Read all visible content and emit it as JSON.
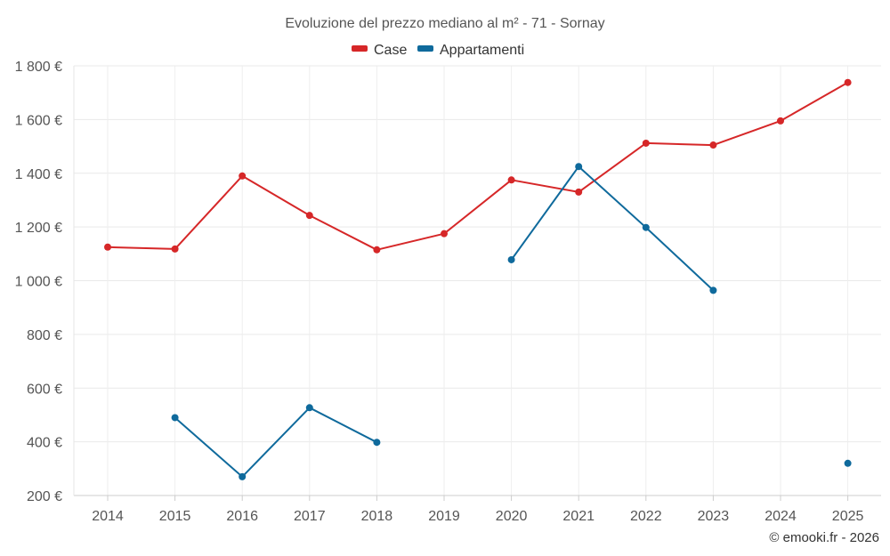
{
  "chart_data": {
    "type": "line",
    "title": "Evoluzione del prezzo mediano al m² - 71 - Sornay",
    "categories": [
      "2014",
      "2015",
      "2016",
      "2017",
      "2018",
      "2019",
      "2020",
      "2021",
      "2022",
      "2023",
      "2024",
      "2025"
    ],
    "ylim": [
      200,
      1800
    ],
    "yticks": [
      200,
      400,
      600,
      800,
      1000,
      1200,
      1400,
      1600,
      1800
    ],
    "ytick_labels": [
      "200 €",
      "400 €",
      "600 €",
      "800 €",
      "1 000 €",
      "1 200 €",
      "1 400 €",
      "1 600 €",
      "1 800 €"
    ],
    "grid": true,
    "legend_position": "top-center",
    "series": [
      {
        "name": "Case",
        "color": "#d62728",
        "values": [
          1125,
          1118,
          1390,
          1243,
          1115,
          1175,
          1375,
          1330,
          1512,
          1505,
          1595,
          1738
        ]
      },
      {
        "name": "Appartamenti",
        "color": "#0f6a9c",
        "values": [
          null,
          490,
          270,
          527,
          398,
          null,
          1078,
          1425,
          1198,
          964,
          null,
          320
        ]
      }
    ],
    "credit": "© emooki.fr - 2026"
  }
}
